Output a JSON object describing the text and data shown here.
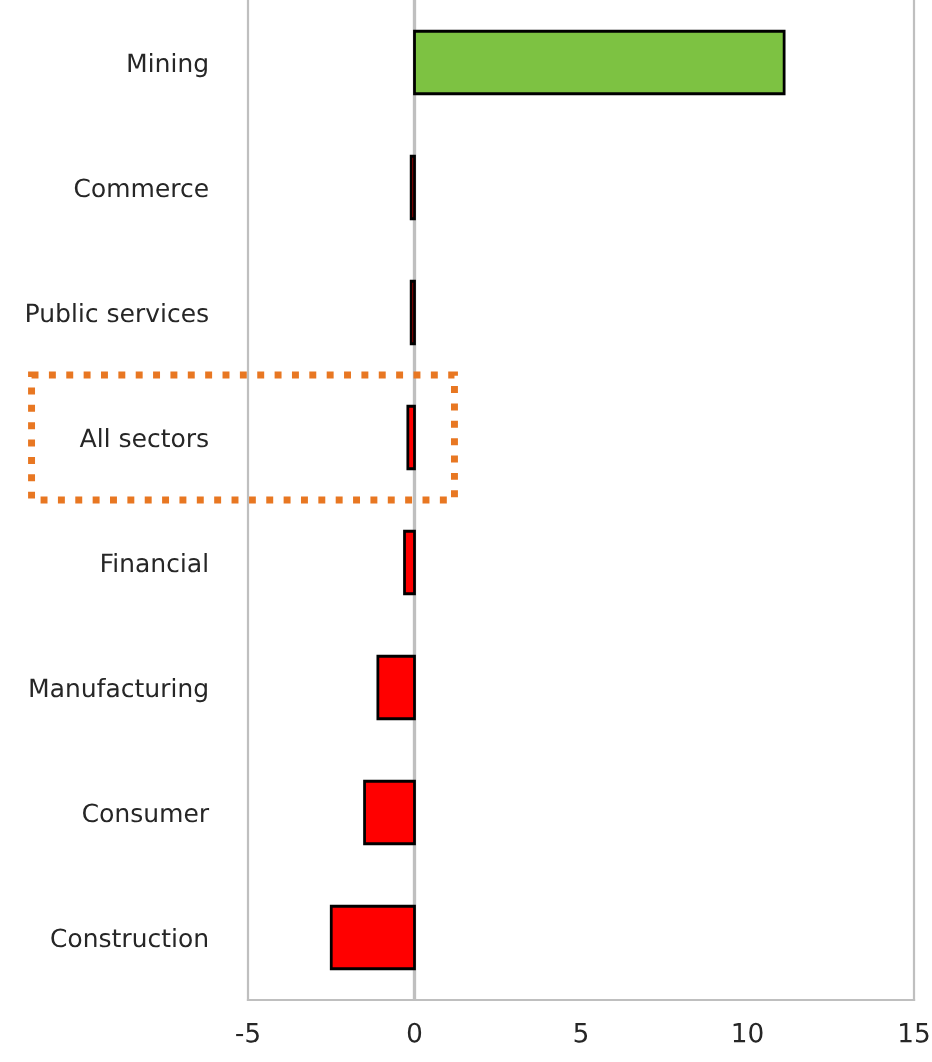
{
  "chart_data": {
    "type": "bar",
    "orientation": "horizontal",
    "categories": [
      "Mining",
      "Commerce",
      "Public services",
      "All sectors",
      "Financial",
      "Manufacturing",
      "Consumer",
      "Construction"
    ],
    "values": [
      11.1,
      -0.1,
      -0.1,
      -0.2,
      -0.3,
      -1.1,
      -1.5,
      -2.5
    ],
    "colors": [
      "#7dc242",
      "#ff0000",
      "#ff0000",
      "#ff0000",
      "#ff0000",
      "#ff0000",
      "#ff0000",
      "#ff0000"
    ],
    "xlim": [
      -5,
      15
    ],
    "xticks": [
      -5,
      0,
      5,
      10,
      15
    ],
    "ref_lines": [
      {
        "axis": "x",
        "value": 0,
        "color": "#bfbfbf"
      }
    ]
  }
}
